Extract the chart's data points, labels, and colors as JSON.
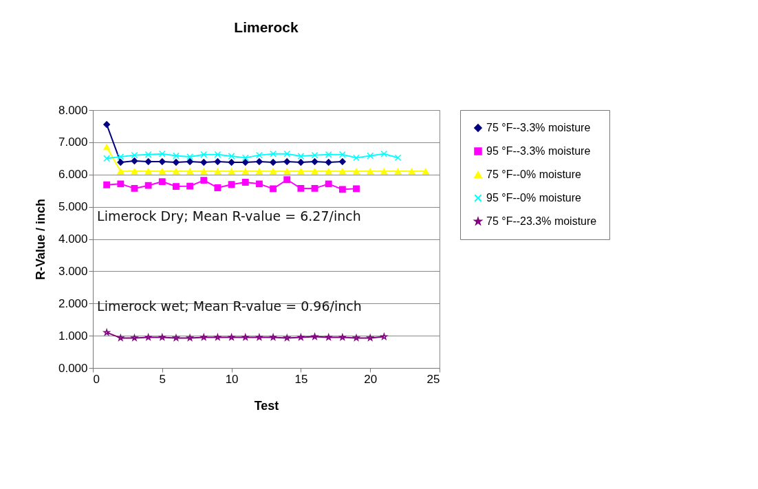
{
  "chart_data": {
    "type": "line",
    "title": "Limerock",
    "xlabel": "Test",
    "ylabel": "R-Value / inch",
    "annotations": [
      "Limerock Dry; Mean R-value = 6.27/inch",
      "Limerock wet; Mean R-value = 0.96/inch"
    ],
    "xlim": [
      0,
      25
    ],
    "xticks": [
      0,
      5,
      10,
      15,
      20,
      25
    ],
    "ylim": [
      0,
      8
    ],
    "yticks": [
      {
        "value": 0,
        "label": "0.000"
      },
      {
        "value": 1,
        "label": "1.000"
      },
      {
        "value": 2,
        "label": "2.000"
      },
      {
        "value": 3,
        "label": "3.000"
      },
      {
        "value": 4,
        "label": "4.000"
      },
      {
        "value": 5,
        "label": "5.000"
      },
      {
        "value": 6,
        "label": "6.000"
      },
      {
        "value": 7,
        "label": "7.000"
      },
      {
        "value": 8,
        "label": "8.000"
      }
    ],
    "grid": "y",
    "legend": "right",
    "series": [
      {
        "name": "75 °F--3.3%  moisture",
        "color": "#000080",
        "marker": "diamond",
        "x": [
          1,
          2,
          3,
          4,
          5,
          6,
          7,
          8,
          9,
          10,
          11,
          12,
          13,
          14,
          15,
          16,
          17,
          18
        ],
        "values": [
          7.55,
          6.38,
          6.42,
          6.4,
          6.4,
          6.38,
          6.4,
          6.38,
          6.4,
          6.38,
          6.38,
          6.4,
          6.38,
          6.4,
          6.38,
          6.4,
          6.38,
          6.4
        ]
      },
      {
        "name": "95 °F--3.3% moisture",
        "color": "#ff00ff",
        "marker": "square",
        "x": [
          1,
          2,
          3,
          4,
          5,
          6,
          7,
          8,
          9,
          10,
          11,
          12,
          13,
          14,
          15,
          16,
          17,
          18,
          19
        ],
        "values": [
          5.68,
          5.71,
          5.57,
          5.66,
          5.78,
          5.63,
          5.64,
          5.82,
          5.59,
          5.69,
          5.76,
          5.71,
          5.56,
          5.84,
          5.57,
          5.57,
          5.71,
          5.54,
          5.56
        ]
      },
      {
        "name": "75 °F--0% moisture",
        "color": "#ffff00",
        "marker": "triangle",
        "x": [
          1,
          2,
          3,
          4,
          5,
          6,
          7,
          8,
          9,
          10,
          11,
          12,
          13,
          14,
          15,
          16,
          17,
          18,
          19,
          20,
          21,
          22,
          23,
          24
        ],
        "values": [
          6.85,
          6.1,
          6.1,
          6.1,
          6.1,
          6.1,
          6.1,
          6.1,
          6.1,
          6.1,
          6.1,
          6.1,
          6.1,
          6.1,
          6.1,
          6.1,
          6.1,
          6.1,
          6.1,
          6.1,
          6.1,
          6.1,
          6.1,
          6.1
        ]
      },
      {
        "name": "95 °F--0% moisture",
        "color": "#00ffff",
        "marker": "cross",
        "x": [
          1,
          2,
          3,
          4,
          5,
          6,
          7,
          8,
          9,
          10,
          11,
          12,
          13,
          14,
          15,
          16,
          17,
          18,
          19,
          20,
          21,
          22
        ],
        "values": [
          6.5,
          6.55,
          6.6,
          6.62,
          6.64,
          6.58,
          6.55,
          6.62,
          6.62,
          6.57,
          6.52,
          6.6,
          6.64,
          6.64,
          6.57,
          6.6,
          6.62,
          6.62,
          6.52,
          6.58,
          6.64,
          6.52
        ]
      },
      {
        "name": "75 °F--23.3% moisture",
        "color": "#800080",
        "marker": "star",
        "x": [
          1,
          2,
          3,
          4,
          5,
          6,
          7,
          8,
          9,
          10,
          11,
          12,
          13,
          14,
          15,
          16,
          17,
          18,
          19,
          20,
          21
        ],
        "values": [
          1.1,
          0.93,
          0.93,
          0.95,
          0.95,
          0.93,
          0.93,
          0.95,
          0.95,
          0.95,
          0.95,
          0.95,
          0.95,
          0.93,
          0.95,
          0.97,
          0.95,
          0.95,
          0.93,
          0.93,
          0.97
        ]
      }
    ]
  }
}
